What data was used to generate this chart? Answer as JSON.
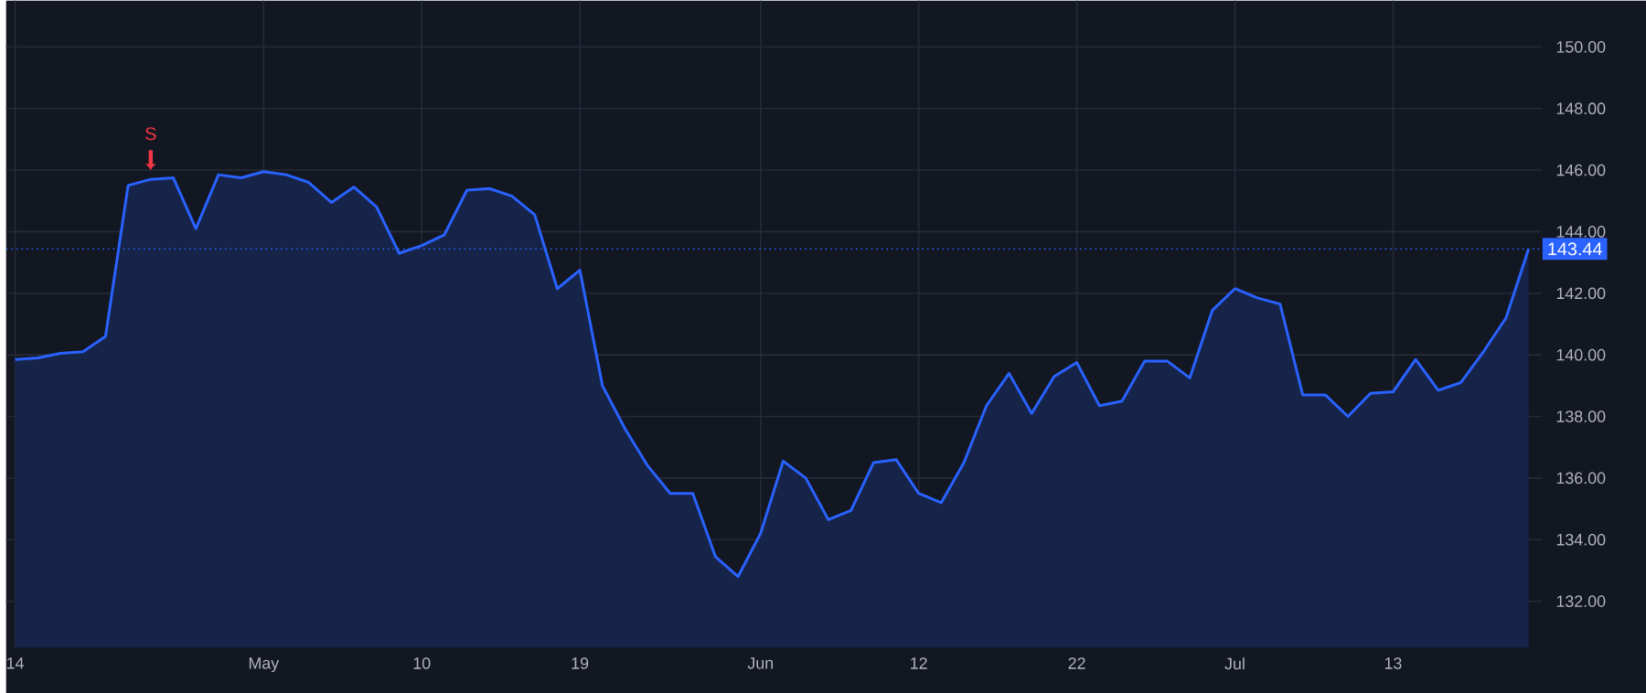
{
  "chart_data": {
    "type": "area",
    "categories": [
      "14",
      null,
      null,
      null,
      null,
      null,
      null,
      null,
      null,
      null,
      null,
      "May",
      null,
      null,
      null,
      null,
      null,
      null,
      "10",
      null,
      null,
      null,
      null,
      null,
      null,
      "19",
      null,
      null,
      null,
      null,
      null,
      null,
      null,
      "Jun",
      null,
      null,
      null,
      null,
      null,
      null,
      "12",
      null,
      null,
      null,
      null,
      null,
      null,
      "22",
      null,
      null,
      null,
      null,
      null,
      null,
      "Jul",
      null,
      null,
      null,
      null,
      null,
      null,
      "13",
      null,
      null,
      null,
      null,
      null,
      null
    ],
    "series": [
      {
        "color": "#2962ff",
        "values": [
          139.85,
          139.9,
          140.05,
          140.1,
          140.6,
          145.5,
          145.7,
          145.75,
          144.1,
          145.85,
          145.75,
          145.95,
          145.85,
          145.6,
          144.95,
          145.45,
          144.8,
          143.3,
          143.55,
          143.9,
          145.35,
          145.4,
          145.15,
          144.55,
          142.15,
          142.75,
          139.0,
          137.6,
          136.4,
          135.5,
          135.5,
          133.45,
          132.8,
          134.2,
          136.55,
          136.0,
          134.65,
          134.95,
          136.5,
          136.6,
          135.5,
          135.2,
          136.5,
          138.35,
          139.4,
          138.1,
          139.3,
          139.75,
          138.35,
          138.5,
          139.8,
          139.8,
          139.25,
          141.45,
          142.15,
          141.85,
          141.65,
          138.7,
          138.7,
          138.0,
          138.75,
          138.8,
          139.85,
          138.85,
          139.1,
          140.1,
          141.2,
          143.44
        ]
      }
    ],
    "ylim": [
      130.5,
      151.5
    ],
    "yticks": [
      {
        "value": 132,
        "label": "132.00"
      },
      {
        "value": 134,
        "label": "134.00"
      },
      {
        "value": 136,
        "label": "136.00"
      },
      {
        "value": 138,
        "label": "138.00"
      },
      {
        "value": 140,
        "label": "140.00"
      },
      {
        "value": 142,
        "label": "142.00"
      },
      {
        "value": 144,
        "label": "144.00"
      },
      {
        "value": 146,
        "label": "146.00"
      },
      {
        "value": 148,
        "label": "148.00"
      },
      {
        "value": 150,
        "label": "150.00"
      }
    ],
    "ref_lines": [
      {
        "axis": "y",
        "value": 143.44,
        "label": "143.44",
        "color": "#2962ff",
        "line_style": "dotted"
      }
    ],
    "annotations": [
      {
        "text": "S",
        "y": 145.7
      }
    ],
    "grid": true
  }
}
